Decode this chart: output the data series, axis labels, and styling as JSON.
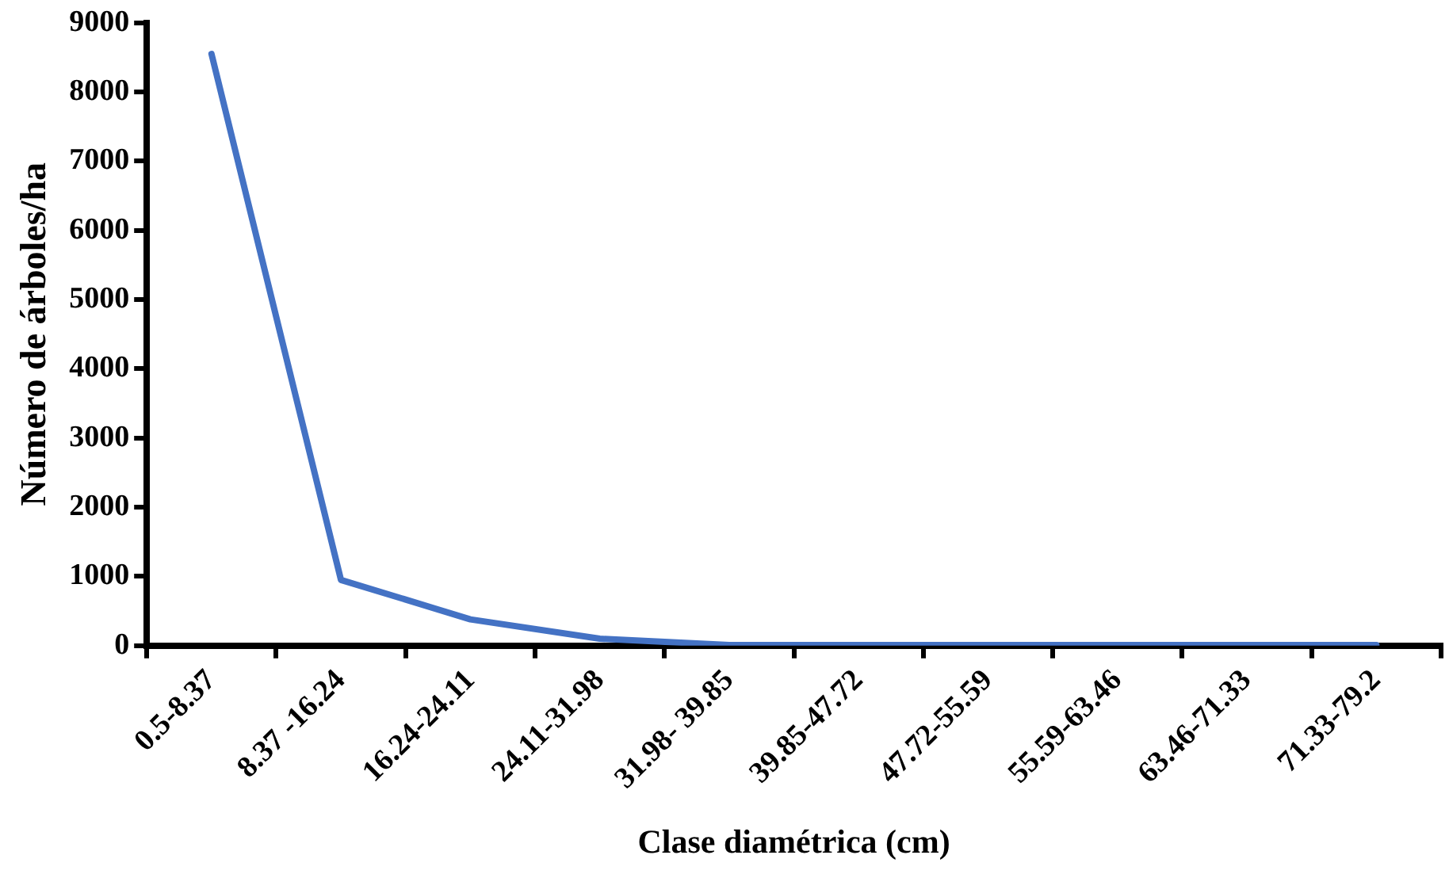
{
  "chart_data": {
    "type": "line",
    "xlabel": "Clase diamétrica (cm)",
    "ylabel": "Número de árboles/ha",
    "categories": [
      "0.5-8.37",
      "8.37 -16.24",
      "16.24-24.11",
      "24.11-31.98",
      "31.98- 39.85",
      "39.85-47.72",
      "47.72-55.59",
      "55.59-63.46",
      "63.46-71.33",
      "71.33-79.2"
    ],
    "series": [
      {
        "color": "#4472c4",
        "values": [
          8550,
          950,
          380,
          100,
          10,
          10,
          10,
          10,
          10,
          10
        ]
      }
    ],
    "ylim": [
      0,
      9000
    ],
    "yticks": [
      0,
      1000,
      2000,
      3000,
      4000,
      5000,
      6000,
      7000,
      8000,
      9000
    ],
    "grid": false,
    "legend": false,
    "marker": "none",
    "line_style": "solid"
  }
}
